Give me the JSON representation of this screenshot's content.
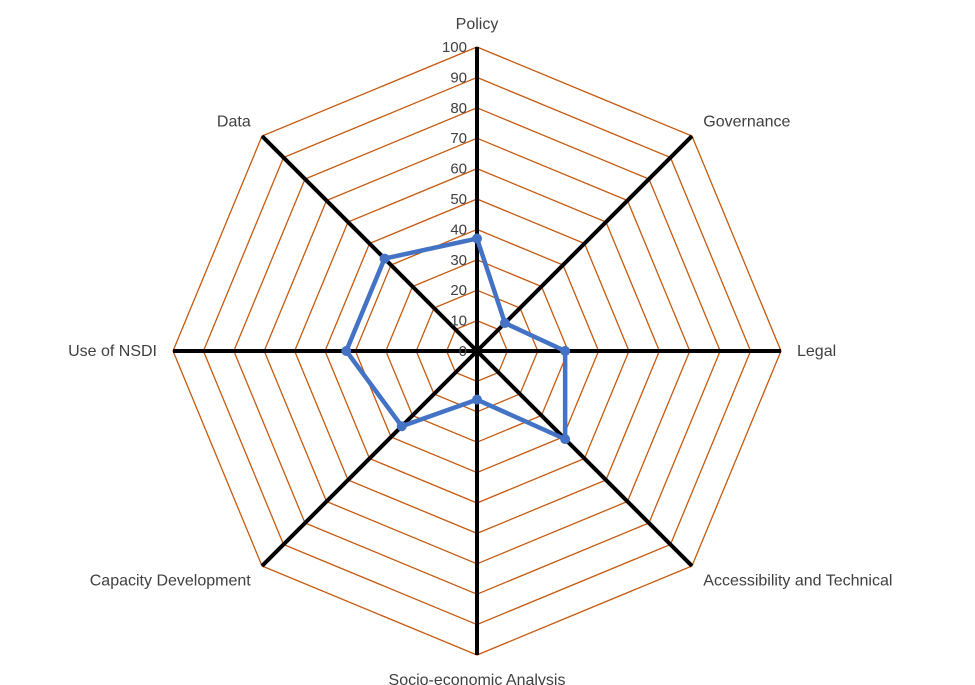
{
  "chart_data": {
    "type": "radar",
    "title": "",
    "axes": [
      "Policy",
      "Governance",
      "Legal",
      "Accessibility and Technical",
      "Socio-economic Analysis",
      "Capacity Development",
      "Use of NSDI",
      "Data"
    ],
    "ticks": [
      "0",
      "10",
      "20",
      "30",
      "40",
      "50",
      "60",
      "70",
      "80",
      "90",
      "100"
    ],
    "rlim": [
      0,
      100
    ],
    "tick_step": 10,
    "series": [
      {
        "values": [
          37,
          13,
          29,
          41,
          16,
          35,
          43,
          43
        ]
      }
    ],
    "colors": {
      "grid": "#C55A11",
      "axis": "#000000",
      "series": "#4472C4",
      "text": "#404040"
    }
  }
}
